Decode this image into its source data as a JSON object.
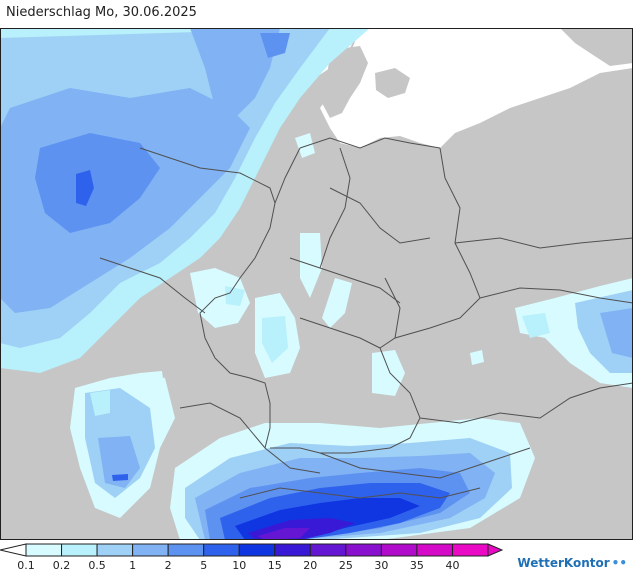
{
  "header": {
    "title": "Niederschlag Mo, 30.06.2025"
  },
  "legend": {
    "labels": [
      "0.1",
      "0.2",
      "0.5",
      "1",
      "2",
      "5",
      "10",
      "15",
      "20",
      "25",
      "30",
      "35",
      "40"
    ],
    "colors": [
      "#d7fbff",
      "#b8f0fb",
      "#9fd0f6",
      "#80b2f4",
      "#5e92f0",
      "#2f62ec",
      "#1036e2",
      "#3a19d6",
      "#6416d3",
      "#8a10cf",
      "#b10ccb",
      "#d40ac8",
      "#ea09c5"
    ]
  },
  "brand": {
    "name": "WetterKontor",
    "icon": "raindrops-icon"
  },
  "colors": {
    "land": "#c6c6c6",
    "sea": "#ffffff",
    "border": "#505050",
    "outline": "#202020"
  }
}
